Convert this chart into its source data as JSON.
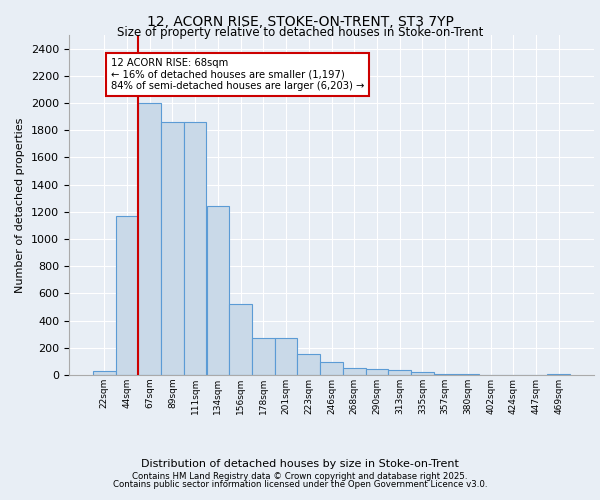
{
  "title1": "12, ACORN RISE, STOKE-ON-TRENT, ST3 7YP",
  "title2": "Size of property relative to detached houses in Stoke-on-Trent",
  "xlabel": "Distribution of detached houses by size in Stoke-on-Trent",
  "ylabel": "Number of detached properties",
  "categories": [
    "22sqm",
    "44sqm",
    "67sqm",
    "89sqm",
    "111sqm",
    "134sqm",
    "156sqm",
    "178sqm",
    "201sqm",
    "223sqm",
    "246sqm",
    "268sqm",
    "290sqm",
    "313sqm",
    "335sqm",
    "357sqm",
    "380sqm",
    "402sqm",
    "424sqm",
    "447sqm",
    "469sqm"
  ],
  "values": [
    30,
    1170,
    2000,
    1860,
    1860,
    1240,
    520,
    275,
    270,
    155,
    95,
    50,
    45,
    40,
    20,
    10,
    5,
    3,
    2,
    2,
    5
  ],
  "bar_color": "#c9d9e8",
  "bar_edge_color": "#5b9bd5",
  "vline_x_index": 2,
  "vline_color": "#cc0000",
  "annotation_text": "12 ACORN RISE: 68sqm\n← 16% of detached houses are smaller (1,197)\n84% of semi-detached houses are larger (6,203) →",
  "annotation_box_color": "white",
  "annotation_box_edge": "#cc0000",
  "ylim": [
    0,
    2500
  ],
  "yticks": [
    0,
    200,
    400,
    600,
    800,
    1000,
    1200,
    1400,
    1600,
    1800,
    2000,
    2200,
    2400
  ],
  "background_color": "#e8eef5",
  "plot_background": "#e8eef5",
  "footer1": "Contains HM Land Registry data © Crown copyright and database right 2025.",
  "footer2": "Contains public sector information licensed under the Open Government Licence v3.0."
}
